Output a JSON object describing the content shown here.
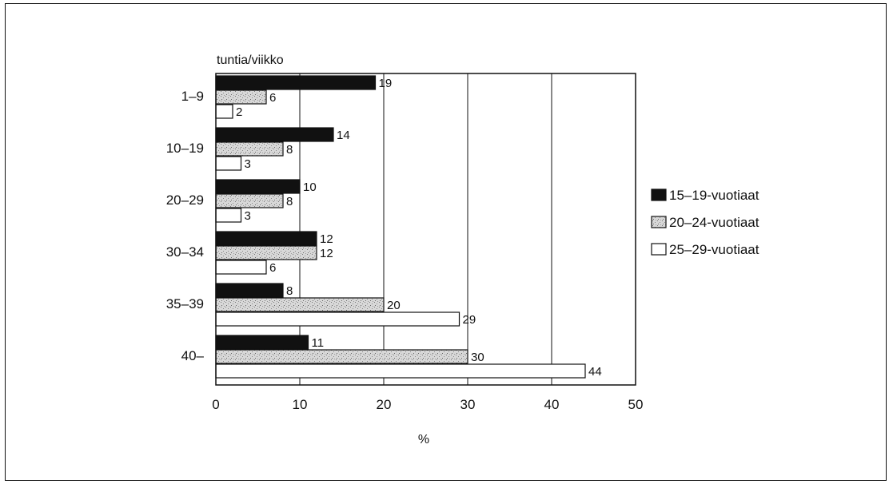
{
  "chart_data": {
    "type": "bar",
    "orientation": "horizontal",
    "title": "",
    "ylabel": "tuntia/viikko",
    "xlabel": "%",
    "xlim": [
      0,
      50
    ],
    "xticks": [
      0,
      10,
      20,
      30,
      40,
      50
    ],
    "grid": true,
    "legend_position": "right",
    "categories": [
      "1–9",
      "10–19",
      "20–29",
      "30–34",
      "35–39",
      "40–"
    ],
    "series": [
      {
        "name": "15–19-vuotiaat",
        "color": "#111111",
        "values": [
          19,
          14,
          10,
          12,
          8,
          11
        ]
      },
      {
        "name": "20–24-vuotiaat",
        "color": "#c8c8c8",
        "values": [
          6,
          8,
          8,
          12,
          20,
          30
        ]
      },
      {
        "name": "25–29-vuotiaat",
        "color": "#ffffff",
        "values": [
          2,
          3,
          3,
          6,
          29,
          44
        ]
      }
    ]
  }
}
